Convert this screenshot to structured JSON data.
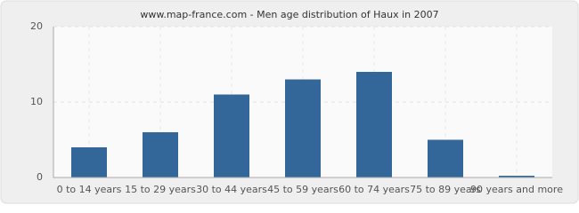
{
  "chart_data": {
    "type": "bar",
    "title": "www.map-france.com - Men age distribution of Haux in 2007",
    "categories": [
      "0 to 14 years",
      "15 to 29 years",
      "30 to 44 years",
      "45 to 59 years",
      "60 to 74 years",
      "75 to 89 years",
      "90 years and more"
    ],
    "values": [
      4,
      6,
      11,
      13,
      14,
      5,
      0
    ],
    "color": "#336699",
    "ylim": [
      0,
      20
    ],
    "yticks": [
      0,
      10,
      20
    ],
    "grid": true
  }
}
